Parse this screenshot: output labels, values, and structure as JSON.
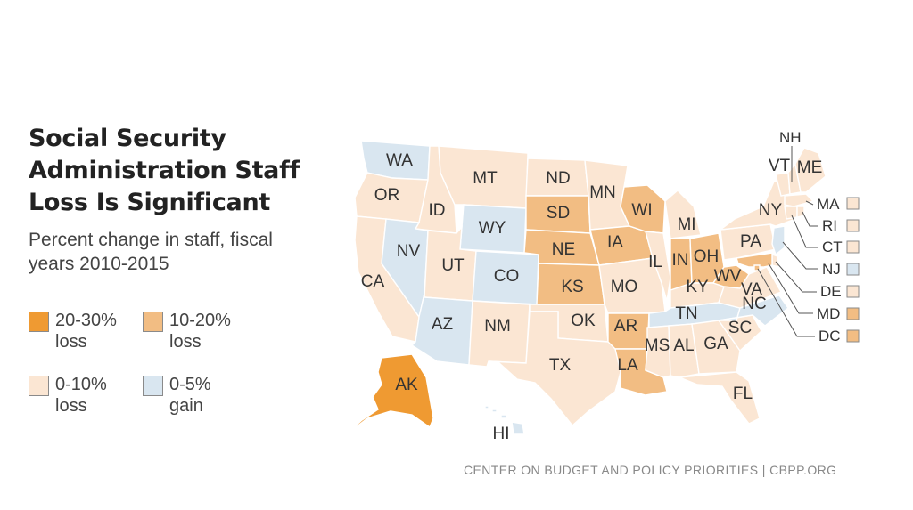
{
  "title_lines": [
    "Social Security",
    "Administration Staff",
    "Loss Is Significant"
  ],
  "subtitle_lines": [
    "Percent change in staff, fiscal",
    "years 2010-2015"
  ],
  "legend": [
    {
      "key": "loss_20_30",
      "line1": "20-30%",
      "line2": "loss",
      "color": "#ef9a32"
    },
    {
      "key": "loss_10_20",
      "line1": "10-20%",
      "line2": "loss",
      "color": "#f2bd83"
    },
    {
      "key": "loss_0_10",
      "line1": "0-10%",
      "line2": "loss",
      "color": "#fbe6d3"
    },
    {
      "key": "gain_0_5",
      "line1": "0-5%",
      "line2": "gain",
      "color": "#d9e6f0"
    }
  ],
  "states": [
    {
      "abbr": "WA",
      "category": "gain_0_5"
    },
    {
      "abbr": "OR",
      "category": "loss_0_10"
    },
    {
      "abbr": "CA",
      "category": "loss_0_10"
    },
    {
      "abbr": "ID",
      "category": "loss_0_10"
    },
    {
      "abbr": "NV",
      "category": "gain_0_5"
    },
    {
      "abbr": "MT",
      "category": "loss_0_10"
    },
    {
      "abbr": "WY",
      "category": "gain_0_5"
    },
    {
      "abbr": "UT",
      "category": "loss_0_10"
    },
    {
      "abbr": "AZ",
      "category": "gain_0_5"
    },
    {
      "abbr": "CO",
      "category": "gain_0_5"
    },
    {
      "abbr": "NM",
      "category": "loss_0_10"
    },
    {
      "abbr": "ND",
      "category": "loss_0_10"
    },
    {
      "abbr": "SD",
      "category": "loss_10_20"
    },
    {
      "abbr": "NE",
      "category": "loss_10_20"
    },
    {
      "abbr": "KS",
      "category": "loss_10_20"
    },
    {
      "abbr": "OK",
      "category": "loss_0_10"
    },
    {
      "abbr": "TX",
      "category": "loss_0_10"
    },
    {
      "abbr": "MN",
      "category": "loss_0_10"
    },
    {
      "abbr": "IA",
      "category": "loss_10_20"
    },
    {
      "abbr": "MO",
      "category": "loss_0_10"
    },
    {
      "abbr": "AR",
      "category": "loss_10_20"
    },
    {
      "abbr": "LA",
      "category": "loss_10_20"
    },
    {
      "abbr": "WI",
      "category": "loss_10_20"
    },
    {
      "abbr": "IL",
      "category": "loss_0_10"
    },
    {
      "abbr": "MI",
      "category": "loss_0_10"
    },
    {
      "abbr": "IN",
      "category": "loss_10_20"
    },
    {
      "abbr": "OH",
      "category": "loss_10_20"
    },
    {
      "abbr": "KY",
      "category": "loss_0_10"
    },
    {
      "abbr": "TN",
      "category": "gain_0_5"
    },
    {
      "abbr": "MS",
      "category": "loss_0_10"
    },
    {
      "abbr": "AL",
      "category": "loss_0_10"
    },
    {
      "abbr": "GA",
      "category": "loss_0_10"
    },
    {
      "abbr": "FL",
      "category": "loss_0_10"
    },
    {
      "abbr": "SC",
      "category": "loss_0_10"
    },
    {
      "abbr": "NC",
      "category": "gain_0_5"
    },
    {
      "abbr": "VA",
      "category": "loss_0_10"
    },
    {
      "abbr": "WV",
      "category": "loss_10_20"
    },
    {
      "abbr": "PA",
      "category": "loss_0_10"
    },
    {
      "abbr": "NY",
      "category": "loss_0_10"
    },
    {
      "abbr": "VT",
      "category": "loss_0_10"
    },
    {
      "abbr": "NH",
      "category": "loss_0_10"
    },
    {
      "abbr": "ME",
      "category": "loss_0_10"
    },
    {
      "abbr": "MA",
      "category": "loss_0_10"
    },
    {
      "abbr": "RI",
      "category": "loss_0_10"
    },
    {
      "abbr": "CT",
      "category": "loss_0_10"
    },
    {
      "abbr": "NJ",
      "category": "gain_0_5"
    },
    {
      "abbr": "DE",
      "category": "loss_0_10"
    },
    {
      "abbr": "MD",
      "category": "loss_10_20"
    },
    {
      "abbr": "DC",
      "category": "loss_10_20"
    },
    {
      "abbr": "AK",
      "category": "loss_20_30"
    },
    {
      "abbr": "HI",
      "category": "gain_0_5"
    }
  ],
  "source": "CENTER ON BUDGET AND POLICY PRIORITIES | CBPP.ORG"
}
